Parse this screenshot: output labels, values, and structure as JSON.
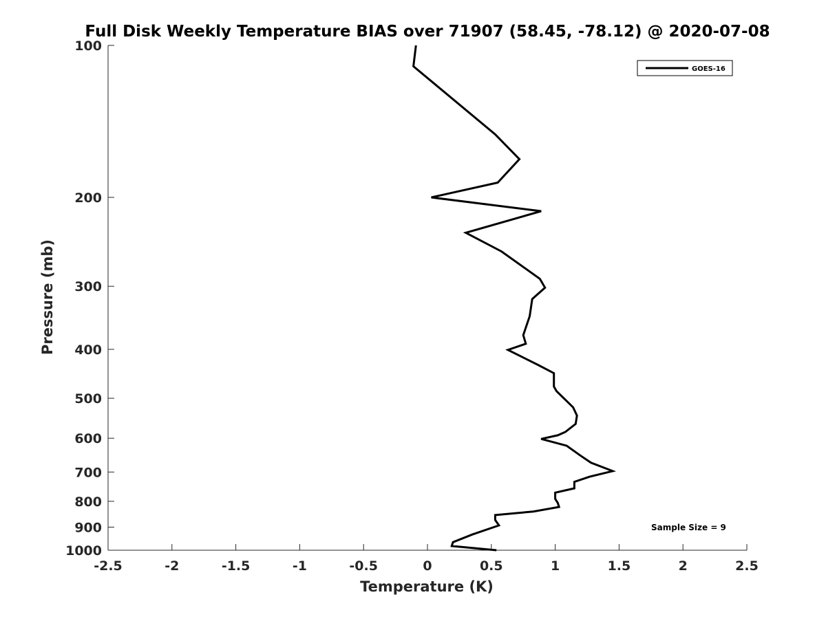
{
  "chart_data": {
    "type": "line",
    "title": "Full Disk Weekly Temperature BIAS over 71907 (58.45, -78.12) @ 2020-07-08",
    "xlabel": "Temperature (K)",
    "ylabel": "Pressure (mb)",
    "xlim": [
      -2.5,
      2.5
    ],
    "ylim": [
      100,
      1000
    ],
    "yscale": "log",
    "y_reversed": true,
    "x_ticks": [
      "-2.5",
      "-2",
      "-1.5",
      "-1",
      "-0.5",
      "0",
      "0.5",
      "1",
      "1.5",
      "2",
      "2.5"
    ],
    "y_ticks": [
      "100",
      "200",
      "300",
      "400",
      "500",
      "600",
      "700",
      "800",
      "900",
      "1000"
    ],
    "grid": false,
    "legend_position": "top-right",
    "series": [
      {
        "name": "GOES-16",
        "color": "#000000",
        "temperature": [
          -0.09,
          -0.11,
          0.53,
          0.72,
          0.55,
          0.03,
          0.89,
          0.3,
          0.58,
          0.88,
          0.92,
          0.82,
          0.8,
          0.75,
          0.77,
          0.63,
          0.87,
          0.99,
          0.99,
          1.01,
          1.14,
          1.17,
          1.16,
          1.08,
          1.02,
          0.89,
          1.09,
          1.2,
          1.28,
          1.45,
          1.27,
          1.15,
          1.15,
          1.0,
          1.0,
          1.02,
          1.03,
          0.83,
          0.53,
          0.53,
          0.56,
          0.35,
          0.2,
          0.19,
          0.54
        ],
        "pressure": [
          100,
          110,
          150,
          168,
          187,
          200,
          213,
          235,
          256,
          290,
          302,
          318,
          344,
          375,
          390,
          401,
          430,
          446,
          474,
          484,
          521,
          541,
          562,
          583,
          592,
          602,
          621,
          650,
          671,
          697,
          715,
          732,
          754,
          769,
          791,
          806,
          821,
          838,
          852,
          871,
          893,
          931,
          964,
          981,
          1000
        ]
      }
    ],
    "annotation": "Sample Size = 9"
  }
}
